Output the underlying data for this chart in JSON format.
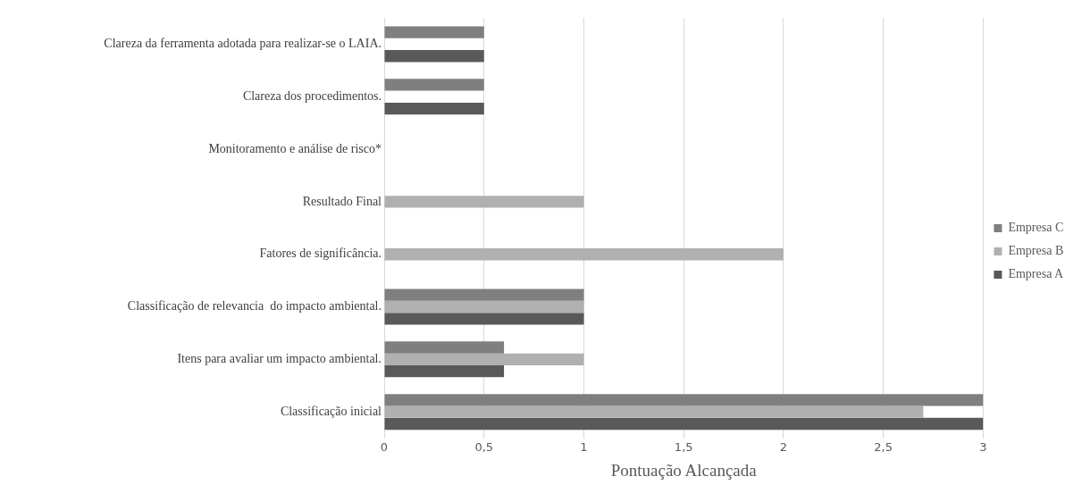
{
  "chart_data": {
    "type": "bar",
    "orientation": "horizontal",
    "xlabel": "Pontuação Alcançada",
    "categories": [
      "Clareza da ferramenta adotada para realizar-se o LAIA.",
      "Clareza dos procedimentos.",
      "Monitoramento e análise de risco*",
      "Resultado Final",
      "Fatores de significância.",
      "Classificação de relevancia  do impacto ambiental.",
      "Itens para avaliar um impacto ambiental.",
      "Classificação inicial"
    ],
    "series": [
      {
        "name": "Empresa C",
        "color": "#7f7f7f",
        "values": [
          0.5,
          0.5,
          0,
          0,
          0,
          1,
          0.6,
          3
        ]
      },
      {
        "name": "Empresa B",
        "color": "#b0b0b0",
        "values": [
          0,
          0,
          0,
          1,
          2,
          1,
          1,
          2.7
        ]
      },
      {
        "name": "Empresa A",
        "color": "#595959",
        "values": [
          0.5,
          0.5,
          0,
          0,
          0,
          1,
          0.6,
          3
        ]
      }
    ],
    "xlim": [
      0,
      3
    ],
    "xticks": [
      0,
      {
        "value": 0.5,
        "label": "0,5"
      },
      1,
      {
        "value": 1.5,
        "label": "1,5"
      },
      2,
      {
        "value": 2.5,
        "label": "2,5"
      },
      3
    ],
    "grid": "x",
    "legend": "right"
  }
}
